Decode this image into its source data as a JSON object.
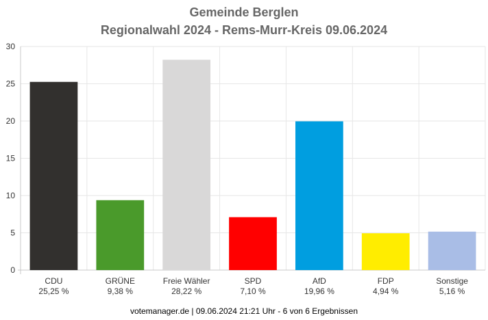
{
  "title": "Gemeinde Berglen",
  "subtitle": "Regionalwahl 2024 - Rems-Murr-Kreis 09.06.2024",
  "footer": "votemanager.de | 09.06.2024 21:21 Uhr - 6 von 6 Ergebnissen",
  "chart_data": {
    "type": "bar",
    "categories": [
      "CDU",
      "GRÜNE",
      "Freie Wähler",
      "SPD",
      "AfD",
      "FDP",
      "Sonstige"
    ],
    "values": [
      25.25,
      9.38,
      28.22,
      7.1,
      19.96,
      4.94,
      5.16
    ],
    "value_labels": [
      "25,25 %",
      "9,38 %",
      "28,22 %",
      "7,10 %",
      "19,96 %",
      "4,94 %",
      "5,16 %"
    ],
    "colors": [
      "#32302e",
      "#4a9a2b",
      "#d9d8d8",
      "#ff0000",
      "#009ee0",
      "#ffed00",
      "#a9bde6"
    ],
    "ylim": [
      0,
      30
    ],
    "yticks": [
      0,
      5,
      10,
      15,
      20,
      25,
      30
    ],
    "grid": true
  }
}
